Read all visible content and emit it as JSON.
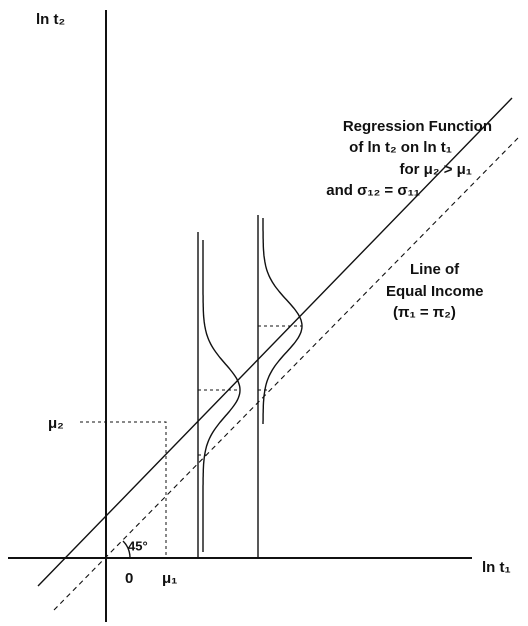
{
  "y_axis_label": "ln t₂",
  "x_axis_label": "ln t₁",
  "origin_label": "0",
  "mu1_label": "μ₁",
  "mu2_label": "μ₂",
  "angle_label": "45°",
  "regression_label": [
    "Regression Function",
    "of ln t₂ on ln t₁",
    "for μ₂ > μ₁",
    "and σ₁₂ = σ₁₁"
  ],
  "equality_label": [
    "Line of",
    "Equal Income",
    "(π₁ = π₂)"
  ]
}
